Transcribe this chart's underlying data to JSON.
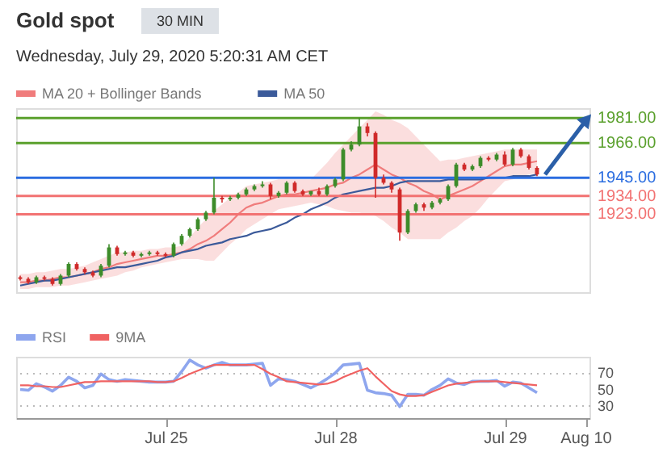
{
  "chart_data": [
    {
      "type": "candlestick",
      "title": "Gold spot",
      "subtitle": "30 MIN",
      "annotations": [
        "Wednesday, July 29, 2020 5:20:31 AM CET"
      ],
      "categories": [
        null,
        null,
        null,
        null,
        null,
        null,
        null,
        null,
        null,
        null,
        null,
        null,
        null,
        null,
        null,
        null,
        null,
        null,
        null,
        null,
        null,
        null,
        null,
        null,
        null,
        null,
        null,
        null,
        null,
        null,
        null,
        null,
        null,
        null,
        null,
        null,
        null,
        null,
        null,
        null,
        null,
        null,
        null,
        null,
        null,
        null,
        null,
        null,
        null,
        null,
        null,
        null,
        null,
        null,
        null,
        null,
        null,
        null,
        null,
        null,
        null,
        null,
        null,
        null,
        null,
        null,
        null,
        null,
        null,
        null,
        null
      ],
      "ohlc": [
        [
          1885,
          1886,
          1883,
          1884
        ],
        [
          1884,
          1885,
          1881,
          1882
        ],
        [
          1882,
          1886,
          1881,
          1885
        ],
        [
          1885,
          1886,
          1883,
          1884
        ],
        [
          1884,
          1885,
          1880,
          1881
        ],
        [
          1881,
          1887,
          1880,
          1886
        ],
        [
          1886,
          1894,
          1885,
          1893
        ],
        [
          1893,
          1894,
          1889,
          1890
        ],
        [
          1890,
          1891,
          1887,
          1888
        ],
        [
          1888,
          1889,
          1885,
          1886
        ],
        [
          1886,
          1893,
          1885,
          1892
        ],
        [
          1892,
          1905,
          1891,
          1903
        ],
        [
          1903,
          1904,
          1898,
          1899
        ],
        [
          1899,
          1901,
          1898,
          1900
        ],
        [
          1900,
          1901,
          1897,
          1898
        ],
        [
          1898,
          1900,
          1897,
          1899
        ],
        [
          1899,
          1901,
          1898,
          1900
        ],
        [
          1900,
          1901,
          1898,
          1899
        ],
        [
          1899,
          1900,
          1897,
          1898
        ],
        [
          1898,
          1906,
          1897,
          1905
        ],
        [
          1905,
          1911,
          1904,
          1910
        ],
        [
          1910,
          1915,
          1909,
          1914
        ],
        [
          1914,
          1921,
          1913,
          1920
        ],
        [
          1920,
          1925,
          1919,
          1924
        ],
        [
          1924,
          1945,
          1923,
          1933
        ],
        [
          1933,
          1934,
          1930,
          1932
        ],
        [
          1932,
          1934,
          1931,
          1933
        ],
        [
          1933,
          1936,
          1932,
          1935
        ],
        [
          1935,
          1939,
          1934,
          1938
        ],
        [
          1938,
          1941,
          1937,
          1940
        ],
        [
          1940,
          1943,
          1939,
          1941
        ],
        [
          1941,
          1942,
          1932,
          1934
        ],
        [
          1934,
          1937,
          1933,
          1936
        ],
        [
          1936,
          1943,
          1935,
          1942
        ],
        [
          1942,
          1943,
          1936,
          1937
        ],
        [
          1937,
          1938,
          1934,
          1935
        ],
        [
          1935,
          1937,
          1934,
          1937
        ],
        [
          1937,
          1939,
          1934,
          1935
        ],
        [
          1935,
          1941,
          1934,
          1940
        ],
        [
          1940,
          1945,
          1939,
          1944
        ],
        [
          1944,
          1963,
          1943,
          1962
        ],
        [
          1962,
          1967,
          1961,
          1965
        ],
        [
          1965,
          1981,
          1964,
          1976
        ],
        [
          1976,
          1978,
          1970,
          1972
        ],
        [
          1972,
          1973,
          1933,
          1945
        ],
        [
          1945,
          1947,
          1941,
          1942
        ],
        [
          1942,
          1943,
          1936,
          1938
        ],
        [
          1938,
          1939,
          1907,
          1912
        ],
        [
          1912,
          1926,
          1911,
          1925
        ],
        [
          1925,
          1930,
          1924,
          1929
        ],
        [
          1929,
          1930,
          1925,
          1927
        ],
        [
          1927,
          1931,
          1926,
          1930
        ],
        [
          1930,
          1933,
          1929,
          1932
        ],
        [
          1932,
          1941,
          1931,
          1940
        ],
        [
          1940,
          1954,
          1939,
          1953
        ],
        [
          1953,
          1954,
          1949,
          1950
        ],
        [
          1950,
          1953,
          1949,
          1952
        ],
        [
          1952,
          1958,
          1951,
          1957
        ],
        [
          1957,
          1958,
          1955,
          1956
        ],
        [
          1956,
          1960,
          1955,
          1959
        ],
        [
          1959,
          1961,
          1952,
          1953
        ],
        [
          1953,
          1963,
          1952,
          1962
        ],
        [
          1962,
          1963,
          1957,
          1958
        ],
        [
          1958,
          1959,
          1950,
          1951
        ],
        [
          1951,
          1952,
          1946,
          1947
        ],
        null,
        null,
        null,
        null,
        null,
        null
      ],
      "ylim": [
        1876,
        1987
      ],
      "yticks": [
        {
          "value": 1981,
          "label": "1981.00"
        },
        {
          "value": 1966,
          "label": "1966.00"
        },
        {
          "value": 1945,
          "label": "1945.00"
        },
        {
          "value": 1934,
          "label": "1934.00"
        },
        {
          "value": 1923,
          "label": "1923.00"
        }
      ],
      "tick_labels": "y",
      "legend": "top left",
      "series": [
        {
          "name": "MA 20 + Bollinger Bands",
          "type": "line",
          "color": "#f07c7c",
          "values": [
            1882,
            1882,
            1883,
            1883,
            1884,
            1885,
            1885,
            1886,
            1887,
            1888,
            1890,
            1891,
            1893,
            1894,
            1895,
            1896,
            1897,
            1898,
            1898,
            1899,
            1900,
            1902,
            1905,
            1907,
            1910,
            1914,
            1918,
            1923,
            1927,
            1929,
            1930,
            1932,
            1934,
            1935,
            1935,
            1936,
            1937,
            1938,
            1939,
            1941,
            1942,
            1945,
            1947,
            1950,
            1953,
            1950,
            1947,
            1945,
            1942,
            1940,
            1937,
            1935,
            1932,
            1934,
            1936,
            1938,
            1940,
            1943,
            1946,
            1949,
            1952,
            1953,
            1953,
            1954,
            1955,
            null,
            null,
            null,
            null,
            null,
            null
          ],
          "lower": [
            1878,
            1878,
            1879,
            1879,
            1879,
            1880,
            1880,
            1881,
            1882,
            1883,
            1884,
            1885,
            1886,
            1888,
            1889,
            1891,
            1892,
            1893,
            1894,
            1895,
            1896,
            1896,
            1896,
            1895,
            1895,
            1900,
            1905,
            1909,
            1914,
            1917,
            1920,
            1923,
            1926,
            1927,
            1928,
            1929,
            1930,
            1929,
            1928,
            1926,
            1925,
            1924,
            1924,
            1923,
            1922,
            1919,
            1915,
            1912,
            1908,
            1908,
            1908,
            1908,
            1908,
            1912,
            1915,
            1919,
            1922,
            1927,
            1933,
            1938,
            1943,
            1944,
            1946,
            1947,
            1948,
            null,
            null,
            null,
            null,
            null,
            null
          ],
          "upper": [
            1887,
            1887,
            1888,
            1888,
            1889,
            1890,
            1890,
            1891,
            1892,
            1894,
            1896,
            1898,
            1900,
            1900,
            1901,
            1901,
            1902,
            1902,
            1903,
            1903,
            1904,
            1909,
            1915,
            1920,
            1925,
            1929,
            1933,
            1936,
            1940,
            1941,
            1942,
            1943,
            1944,
            1944,
            1944,
            1944,
            1944,
            1949,
            1954,
            1960,
            1965,
            1970,
            1975,
            1980,
            1985,
            1983,
            1980,
            1978,
            1975,
            1970,
            1965,
            1960,
            1955,
            1956,
            1956,
            1957,
            1958,
            1959,
            1960,
            1961,
            1962,
            1962,
            1962,
            1962,
            1962,
            null,
            null,
            null,
            null,
            null,
            null
          ]
        },
        {
          "name": "MA 50",
          "type": "line",
          "color": "#3b5a9a",
          "values": [
            1880,
            1881,
            1882,
            1883,
            1883,
            1884,
            1885,
            1886,
            1887,
            1888,
            1889,
            1890,
            1891,
            1891,
            1892,
            1893,
            1894,
            1895,
            1897,
            1898,
            1900,
            1901,
            1902,
            1904,
            1905,
            1906,
            1908,
            1909,
            1910,
            1912,
            1913,
            1914,
            1916,
            1918,
            1921,
            1923,
            1926,
            1928,
            1930,
            1933,
            1935,
            1936,
            1937,
            1938,
            1939,
            1939,
            1940,
            1942,
            1943,
            1943,
            1943,
            1943,
            1943,
            1944,
            1944,
            1944,
            1944,
            1944,
            1945,
            1945,
            1945,
            1946,
            1946,
            1946,
            1947,
            null,
            null,
            null,
            null,
            null,
            null
          ]
        }
      ],
      "ref_lines": [
        {
          "axis": "y",
          "value": 1981,
          "color": "#5aa02c"
        },
        {
          "axis": "y",
          "value": 1966,
          "color": "#5aa02c"
        },
        {
          "axis": "y",
          "value": 1945,
          "color": "#2b6de0"
        },
        {
          "axis": "y",
          "value": 1934,
          "color": "#f27272"
        },
        {
          "axis": "y",
          "value": 1923,
          "color": "#f27272"
        }
      ]
    },
    {
      "type": "line",
      "legend": "top left",
      "grid": "y",
      "categories": [
        null,
        null,
        null,
        null,
        null,
        null,
        null,
        null,
        null,
        null,
        null,
        null,
        null,
        null,
        null,
        null,
        null,
        null,
        "Jul 25",
        null,
        null,
        null,
        null,
        null,
        null,
        null,
        null,
        null,
        null,
        null,
        null,
        null,
        null,
        null,
        null,
        null,
        null,
        null,
        null,
        "Jul 28",
        null,
        null,
        null,
        null,
        null,
        null,
        null,
        null,
        null,
        null,
        null,
        null,
        null,
        null,
        null,
        null,
        null,
        null,
        null,
        null,
        "Jul 29",
        null,
        null,
        null,
        null,
        null,
        null,
        null,
        null,
        null,
        "Aug 10"
      ],
      "ylim": [
        15,
        90
      ],
      "yticks": [
        30,
        50,
        70
      ],
      "series": [
        {
          "name": "RSI",
          "color": "#8ea6ee",
          "values": [
            50,
            49,
            57,
            53,
            48,
            55,
            65,
            60,
            52,
            55,
            69,
            62,
            60,
            62,
            61,
            60,
            59,
            59,
            59,
            60,
            72,
            86,
            80,
            76,
            80,
            83,
            80,
            80,
            80,
            81,
            82,
            55,
            63,
            62,
            60,
            56,
            52,
            57,
            63,
            70,
            80,
            81,
            82,
            49,
            46,
            45,
            43,
            29,
            44,
            44,
            43,
            50,
            55,
            63,
            58,
            56,
            60,
            60,
            60,
            61,
            54,
            59,
            58,
            52,
            46,
            null,
            null,
            null,
            null,
            null,
            null
          ]
        },
        {
          "name": "9MA",
          "color": "#f06262",
          "values": [
            55,
            55,
            54,
            54,
            53,
            53,
            55,
            57,
            59,
            59,
            60,
            60,
            60,
            60,
            60,
            60,
            60,
            59,
            59,
            60,
            64,
            69,
            73,
            77,
            80,
            80,
            80,
            80,
            80,
            80,
            75,
            69,
            65,
            60,
            59,
            58,
            57,
            56,
            57,
            60,
            65,
            69,
            73,
            76,
            66,
            57,
            48,
            44,
            42,
            42,
            43,
            47,
            51,
            55,
            57,
            58,
            59,
            60,
            60,
            60,
            59,
            58,
            57,
            56,
            55,
            null,
            null,
            null,
            null,
            null,
            null
          ]
        }
      ]
    }
  ]
}
